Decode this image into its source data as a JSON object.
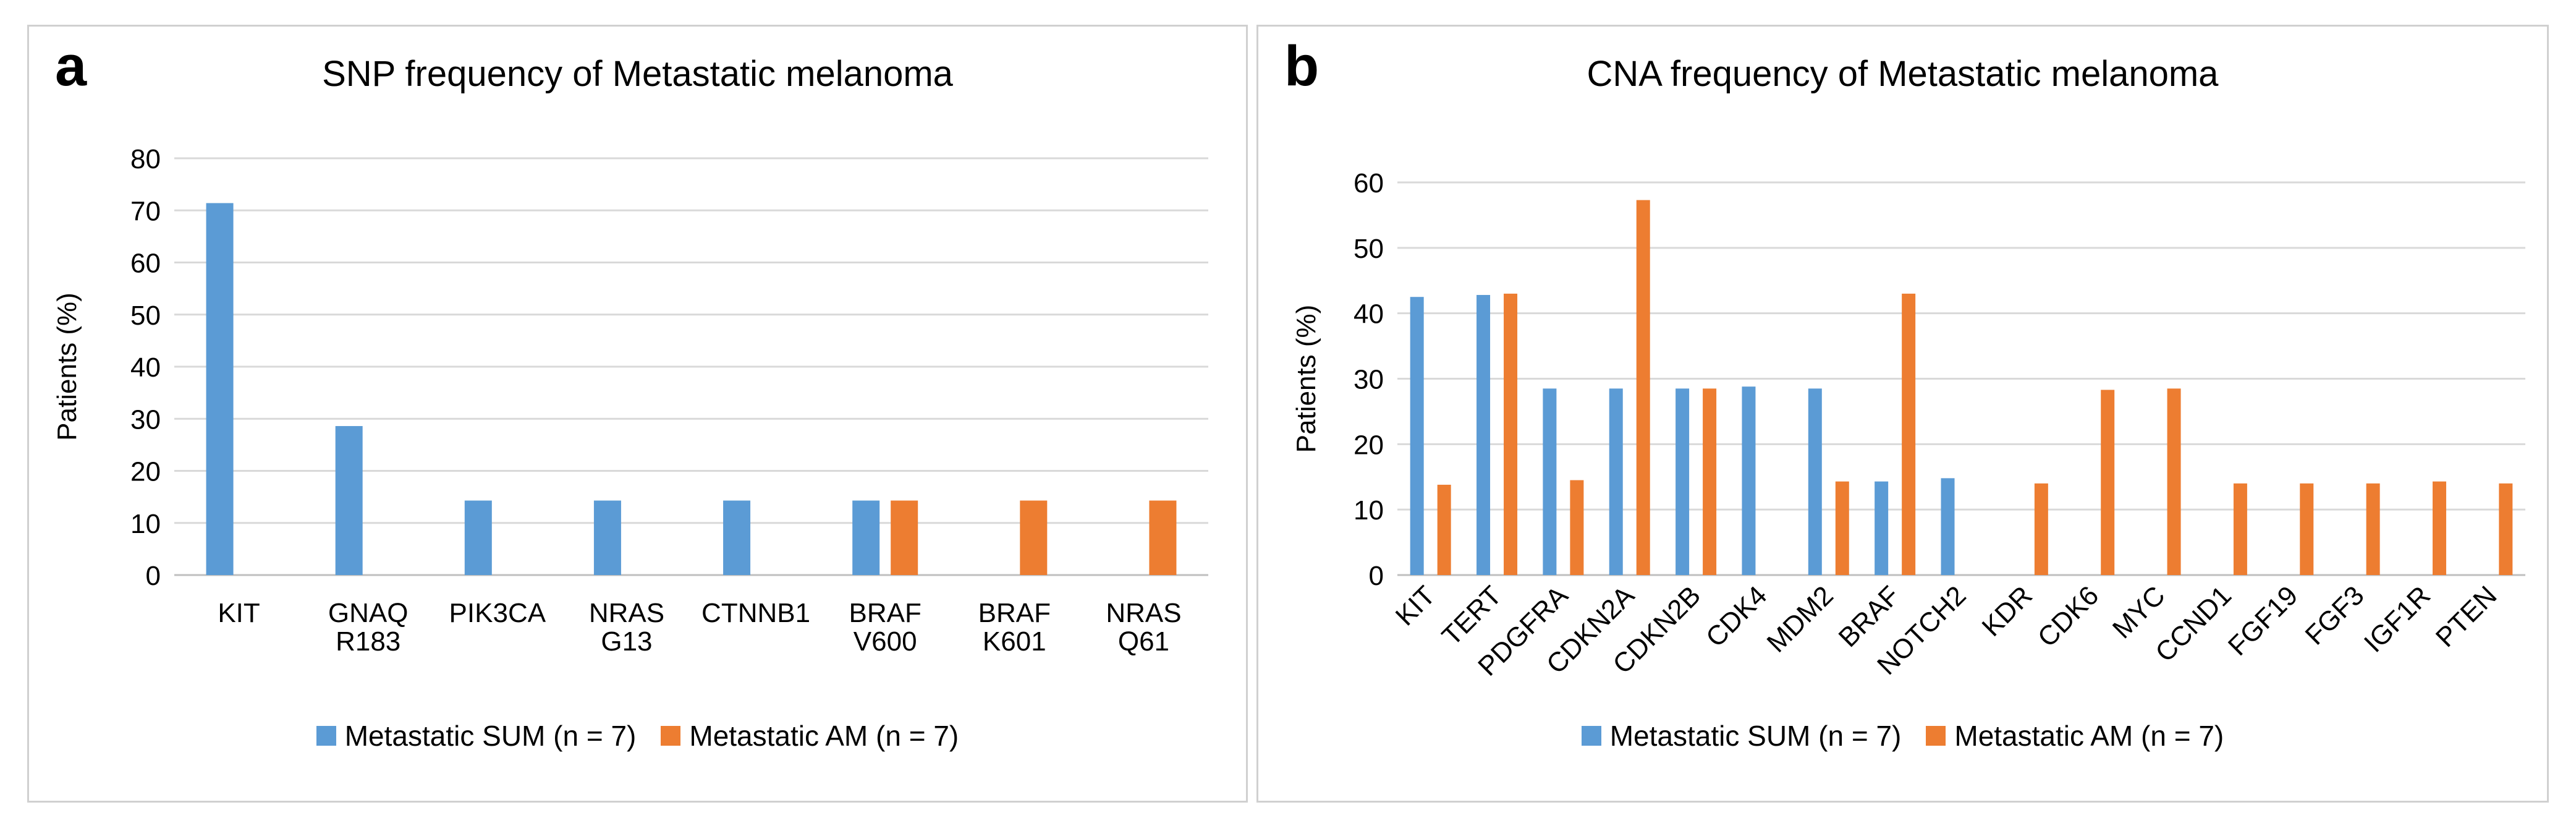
{
  "figure": {
    "panel_a": {
      "letter": "a"
    },
    "panel_b": {
      "letter": "b"
    }
  },
  "colors": {
    "sum": "#5b9bd5",
    "am": "#ed7d31",
    "grid": "#d9d9d9",
    "axis": "#bfbfbf"
  },
  "chart_data": [
    {
      "type": "bar",
      "title": "SNP frequency of Metastatic melanoma",
      "ylabel": "Patients (%)",
      "xlabel": "",
      "ylim": [
        0,
        80
      ],
      "yticks": [
        0,
        10,
        20,
        30,
        40,
        50,
        60,
        70,
        80
      ],
      "grid": true,
      "categories": [
        [
          "KIT"
        ],
        [
          "GNAQ",
          "R183"
        ],
        [
          "PIK3CA"
        ],
        [
          "NRAS",
          "G13"
        ],
        [
          "CTNNB1"
        ],
        [
          "BRAF",
          "V600"
        ],
        [
          "BRAF",
          "K601"
        ],
        [
          "NRAS",
          "Q61"
        ]
      ],
      "series": [
        {
          "name": "Metastatic SUM (n = 7)",
          "values": [
            71.4,
            28.6,
            14.3,
            14.3,
            14.3,
            14.3,
            0,
            0
          ]
        },
        {
          "name": "Metastatic AM (n = 7)",
          "values": [
            0,
            0,
            0,
            0,
            0,
            14.3,
            14.3,
            14.3
          ]
        }
      ],
      "legend_position": "bottom"
    },
    {
      "type": "bar",
      "title": "CNA frequency of Metastatic melanoma",
      "ylabel": "Patients (%)",
      "xlabel": "",
      "ylim": [
        0,
        60
      ],
      "yticks": [
        0,
        10,
        20,
        30,
        40,
        50,
        60
      ],
      "grid": true,
      "categories": [
        "KIT",
        "TERT",
        "PDGFRA",
        "CDKN2A",
        "CDKN2B",
        "CDK4",
        "MDM2",
        "BRAF",
        "NOTCH2",
        "KDR",
        "CDK6",
        "MYC",
        "CCND1",
        "FGF19",
        "FGF3",
        "IGF1R",
        "PTEN"
      ],
      "series": [
        {
          "name": "Metastatic SUM (n = 7)",
          "values": [
            42.5,
            42.8,
            28.5,
            28.5,
            28.5,
            28.8,
            28.5,
            14.3,
            14.8,
            0,
            0,
            0,
            0,
            0,
            0,
            0,
            0
          ]
        },
        {
          "name": "Metastatic AM (n = 7)",
          "values": [
            13.8,
            43.0,
            14.5,
            57.3,
            28.5,
            0,
            14.3,
            43.0,
            0,
            14.0,
            28.3,
            28.5,
            14.0,
            14.0,
            14.0,
            14.3,
            14.0
          ]
        }
      ],
      "legend_position": "bottom"
    }
  ]
}
